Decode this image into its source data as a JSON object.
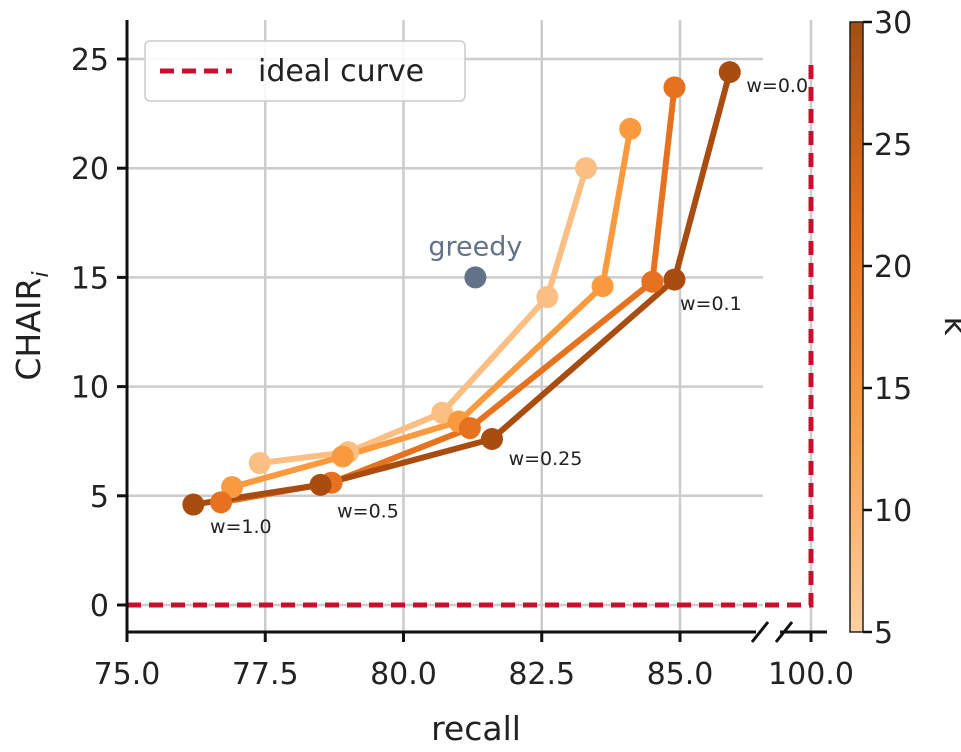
{
  "chart_data": {
    "type": "line",
    "xlabel": "recall",
    "ylabel": "CHAIR",
    "ylabel_subscript": "i",
    "x_ticks": [
      "75.0",
      "77.5",
      "80.0",
      "82.5",
      "85.0",
      "100.0"
    ],
    "y_ticks": [
      "0",
      "5",
      "10",
      "15",
      "20",
      "25"
    ],
    "xlim": [
      75.0,
      100.0
    ],
    "ylim": [
      -1.2,
      26.7
    ],
    "x_axis_break": [
      86.5,
      99.5
    ],
    "grid": true,
    "legend": {
      "placement": "top-left",
      "entries": [
        {
          "label": "ideal curve",
          "color": "#c8102e",
          "style": "dashed"
        }
      ]
    },
    "ideal_curve": {
      "points": [
        [
          75.0,
          0
        ],
        [
          100.0,
          0
        ],
        [
          100.0,
          25
        ]
      ],
      "color": "#c8102e"
    },
    "greedy": {
      "label": "greedy",
      "x": 81.3,
      "y": 15.0,
      "color": "#637387"
    },
    "series": [
      {
        "k": 5,
        "color": "#fbbf84",
        "points": [
          [
            77.4,
            6.5
          ],
          [
            79.0,
            7.0
          ],
          [
            80.7,
            8.8
          ],
          [
            82.6,
            14.1
          ],
          [
            83.3,
            20.0
          ]
        ]
      },
      {
        "k": 10,
        "color": "#f99a3e",
        "points": [
          [
            76.9,
            5.4
          ],
          [
            78.9,
            6.8
          ],
          [
            81.0,
            8.4
          ],
          [
            83.6,
            14.6
          ],
          [
            84.1,
            21.8
          ]
        ]
      },
      {
        "k": 20,
        "color": "#e6711e",
        "points": [
          [
            76.7,
            4.7
          ],
          [
            78.7,
            5.6
          ],
          [
            81.2,
            8.1
          ],
          [
            84.5,
            14.8
          ],
          [
            84.9,
            23.7
          ]
        ]
      },
      {
        "k": 30,
        "color": "#a84c10",
        "points": [
          [
            76.2,
            4.6
          ],
          [
            78.5,
            5.5
          ],
          [
            81.6,
            7.6
          ],
          [
            84.9,
            14.9
          ],
          [
            85.9,
            24.4
          ]
        ]
      }
    ],
    "annotations": [
      {
        "text": "w=0.0",
        "x": 86.2,
        "y": 23.5
      },
      {
        "text": "w=0.1",
        "x": 85.0,
        "y": 13.5
      },
      {
        "text": "w=0.25",
        "x": 81.9,
        "y": 6.4
      },
      {
        "text": "w=0.5",
        "x": 78.8,
        "y": 4.0
      },
      {
        "text": "w=1.0",
        "x": 76.5,
        "y": 3.3
      }
    ],
    "colorbar": {
      "label": "k",
      "min": 5,
      "max": 30,
      "ticks": [
        "5",
        "10",
        "15",
        "20",
        "25",
        "30"
      ],
      "colors": [
        "#fdd0a2",
        "#fb9f4a",
        "#e8711c",
        "#a44e13"
      ]
    }
  }
}
